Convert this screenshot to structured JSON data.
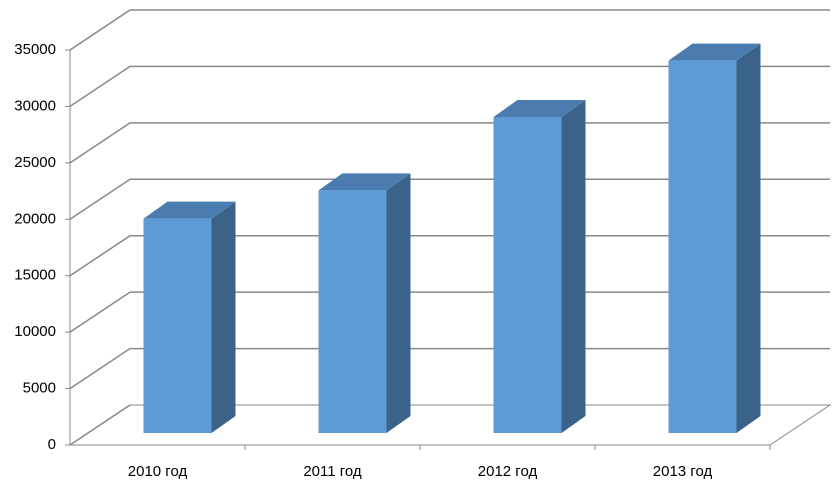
{
  "chart_data": {
    "type": "bar",
    "three_d": true,
    "categories": [
      "2010 год",
      "2011 год",
      "2012 год",
      "2013 год"
    ],
    "values": [
      19000,
      21500,
      28000,
      33000
    ],
    "color": "#5e9bd6",
    "ylim": [
      0,
      35000
    ],
    "yticks": [
      0,
      5000,
      10000,
      15000,
      20000,
      25000,
      30000,
      35000
    ],
    "grid": true
  }
}
